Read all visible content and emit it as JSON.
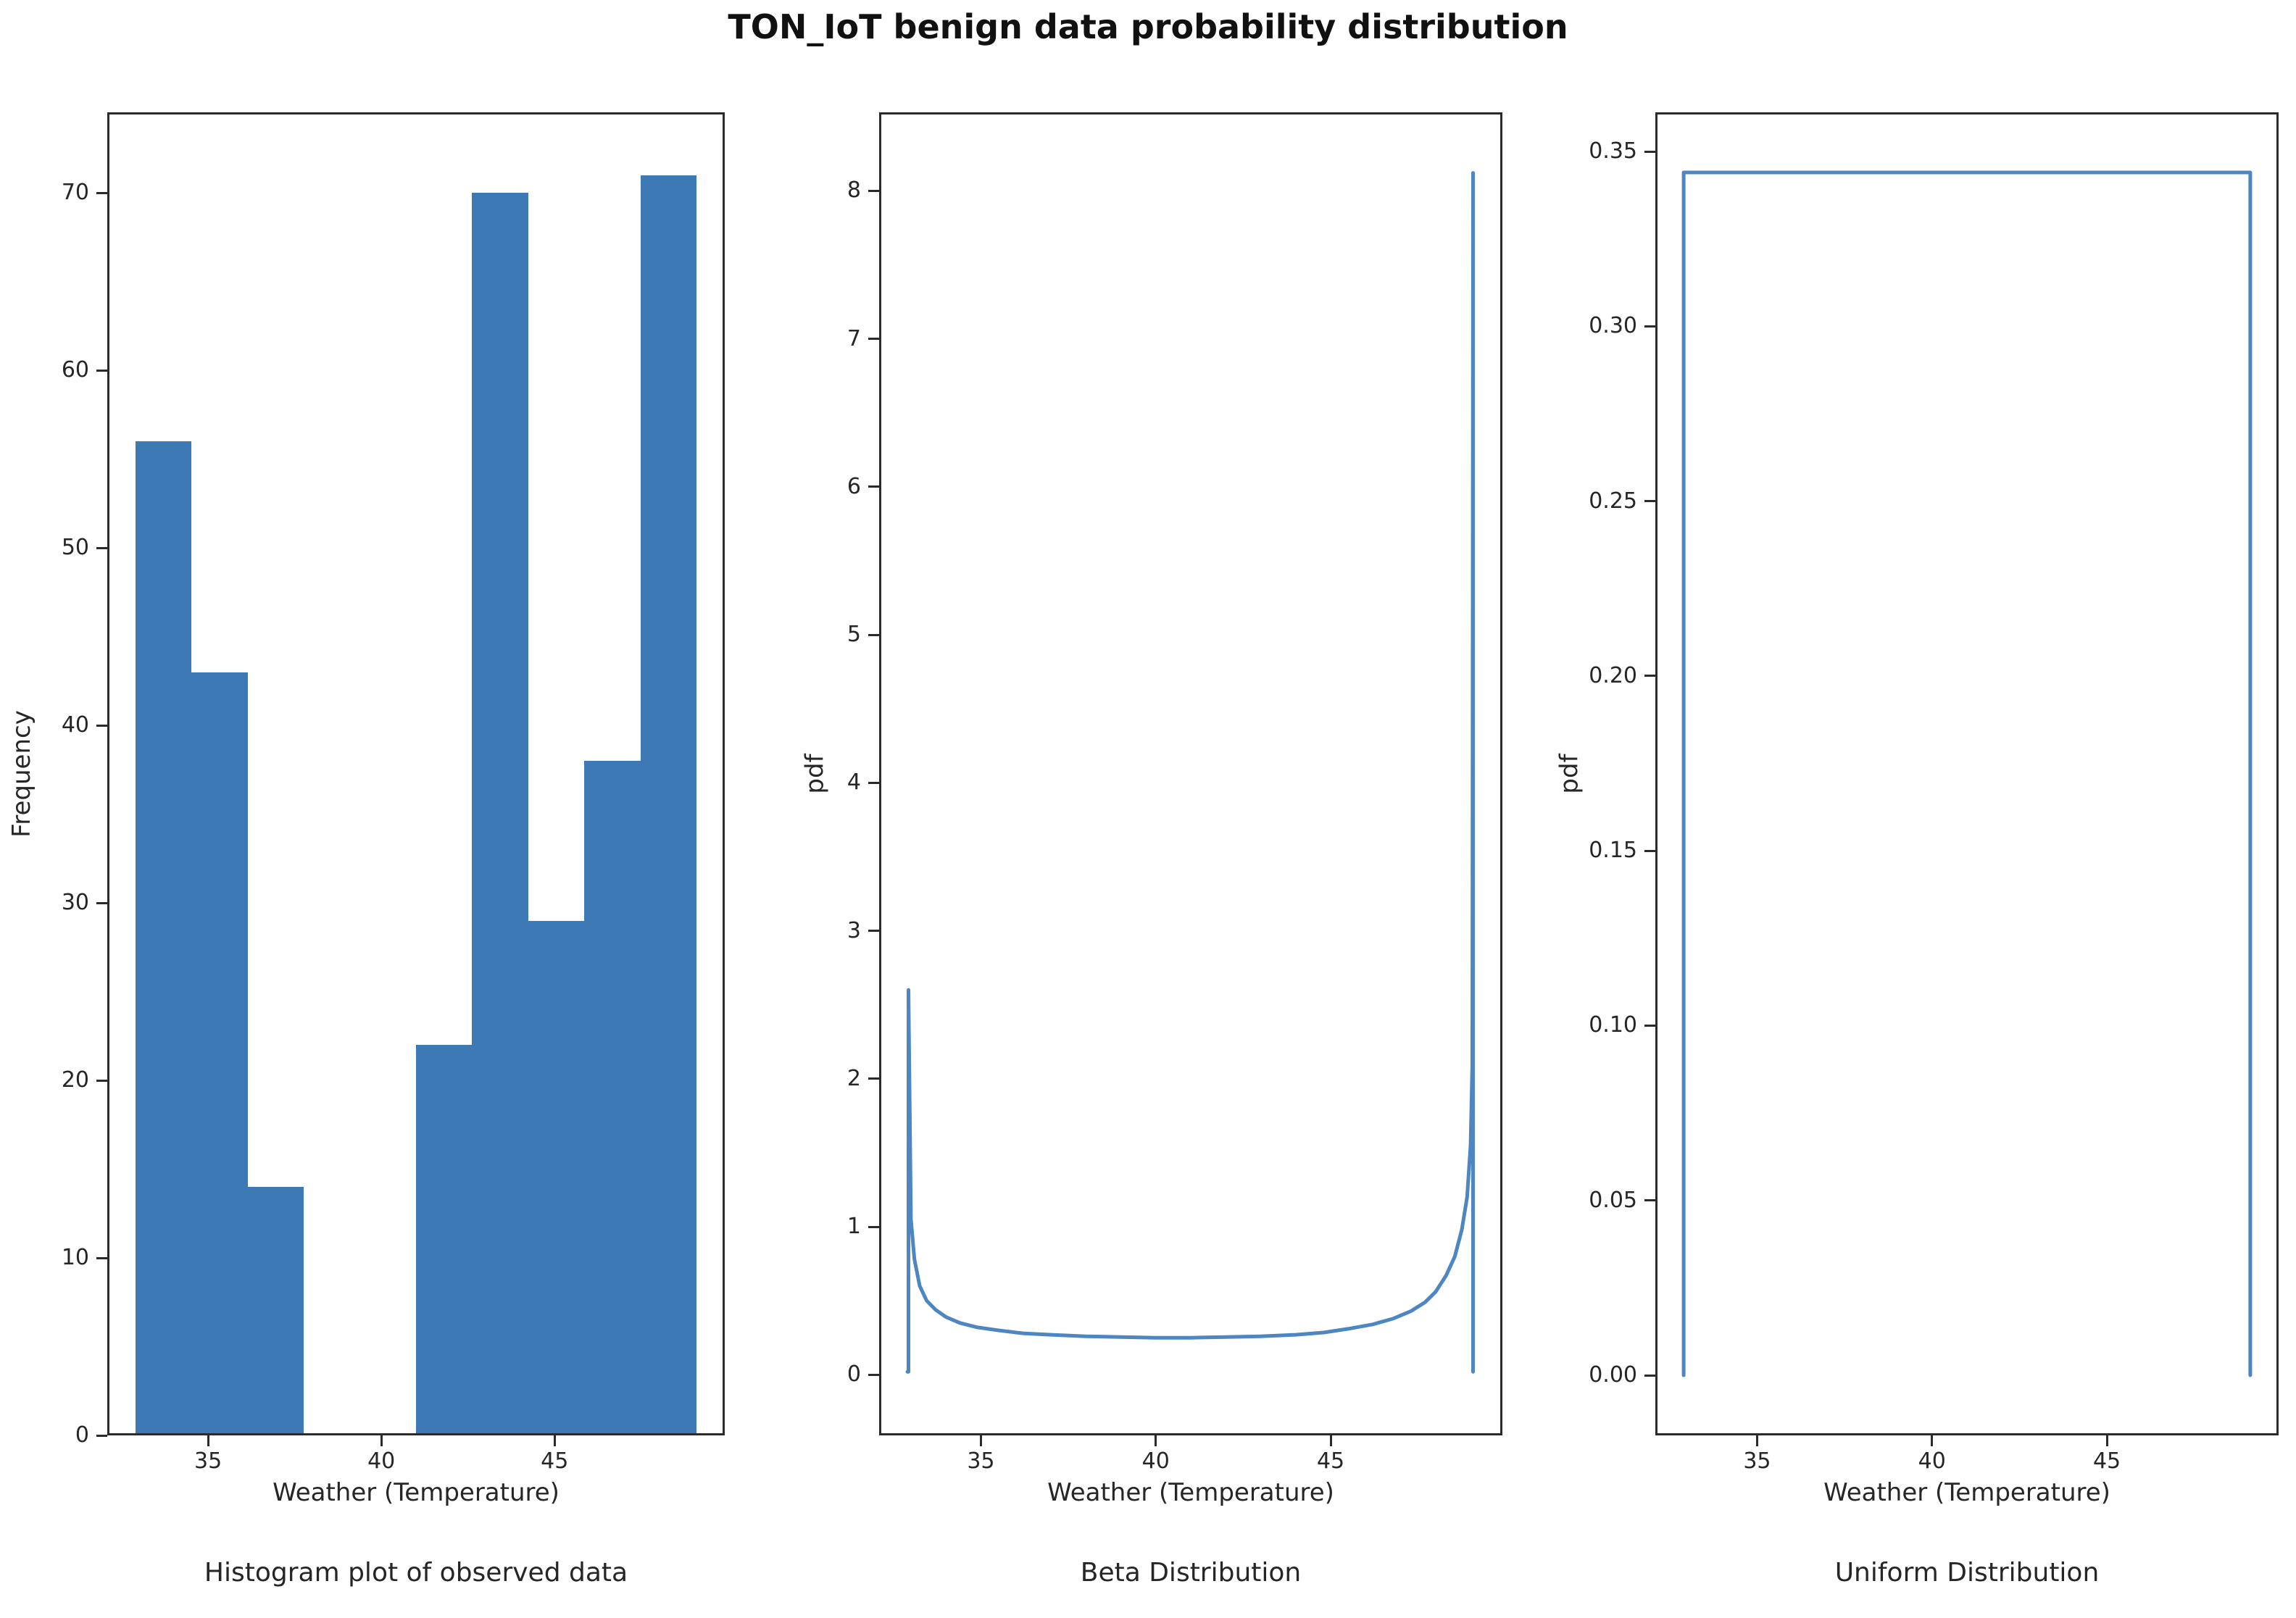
{
  "figure_title": "TON_IoT benign data probability distribution",
  "colors": {
    "bar": "#3d79b4",
    "line": "#4d86c0",
    "spine": "#2b2b2b",
    "text": "#262626"
  },
  "chart_data": [
    {
      "type": "bar",
      "title": "Histogram plot of observed data",
      "xlabel": "Weather (Temperature)",
      "ylabel": "Frequency",
      "xlim": [
        32.09,
        49.91
      ],
      "ylim": [
        0,
        74.55
      ],
      "xtick_values": [
        35,
        40,
        45
      ],
      "xtick_labels": [
        "35",
        "40",
        "45"
      ],
      "ytick_values": [
        0,
        10,
        20,
        30,
        40,
        50,
        60,
        70
      ],
      "ytick_labels": [
        "0",
        "10",
        "20",
        "30",
        "40",
        "50",
        "60",
        "70"
      ],
      "bin_edges": [
        32.9,
        34.52,
        36.14,
        37.76,
        39.38,
        41.0,
        42.62,
        44.24,
        45.86,
        47.48,
        49.1
      ],
      "counts": [
        56,
        43,
        14,
        0,
        0,
        22,
        70,
        29,
        38,
        71
      ],
      "grid": false,
      "legend": null
    },
    {
      "type": "line",
      "title": "Beta Distribution",
      "xlabel": "Weather (Temperature)",
      "ylabel": "pdf",
      "xlim": [
        32.09,
        49.91
      ],
      "ylim": [
        -0.41,
        8.53
      ],
      "xtick_values": [
        35,
        40,
        45
      ],
      "xtick_labels": [
        "35",
        "40",
        "45"
      ],
      "ytick_values": [
        0,
        1,
        2,
        3,
        4,
        5,
        6,
        7,
        8
      ],
      "ytick_labels": [
        "0",
        "1",
        "2",
        "3",
        "4",
        "5",
        "6",
        "7",
        "8"
      ],
      "x": [
        32.9,
        32.93,
        32.93,
        33.0,
        33.1,
        33.25,
        33.45,
        33.7,
        34.0,
        34.4,
        34.9,
        35.5,
        36.2,
        37.0,
        38.0,
        39.0,
        40.0,
        41.0,
        42.0,
        43.0,
        44.0,
        44.8,
        45.5,
        46.2,
        46.8,
        47.3,
        47.7,
        48.0,
        48.3,
        48.55,
        48.75,
        48.9,
        49.0,
        49.05,
        49.07,
        49.07
      ],
      "y": [
        0.02,
        0.02,
        2.6,
        1.05,
        0.78,
        0.6,
        0.5,
        0.44,
        0.39,
        0.35,
        0.32,
        0.3,
        0.28,
        0.27,
        0.26,
        0.255,
        0.25,
        0.25,
        0.255,
        0.26,
        0.27,
        0.285,
        0.31,
        0.34,
        0.38,
        0.43,
        0.49,
        0.56,
        0.67,
        0.8,
        0.98,
        1.2,
        1.55,
        2.1,
        8.12,
        0.02
      ],
      "peak_left": 2.6,
      "peak_right": 8.12,
      "grid": false,
      "legend": null
    },
    {
      "type": "line",
      "title": "Uniform Distribution",
      "xlabel": "Weather (Temperature)",
      "ylabel": "pdf",
      "xlim": [
        32.09,
        49.91
      ],
      "ylim": [
        -0.0172,
        0.3612
      ],
      "xtick_values": [
        35,
        40,
        45
      ],
      "xtick_labels": [
        "35",
        "40",
        "45"
      ],
      "ytick_values": [
        0,
        0.05,
        0.1,
        0.15,
        0.2,
        0.25,
        0.3,
        0.35
      ],
      "ytick_labels": [
        "0.00",
        "0.05",
        "0.10",
        "0.15",
        "0.20",
        "0.25",
        "0.30",
        "0.35"
      ],
      "x": [
        32.9,
        32.9,
        49.1,
        49.1
      ],
      "y": [
        0.0,
        0.344,
        0.344,
        0.0
      ],
      "uniform_level": 0.344,
      "grid": false,
      "legend": null
    }
  ]
}
